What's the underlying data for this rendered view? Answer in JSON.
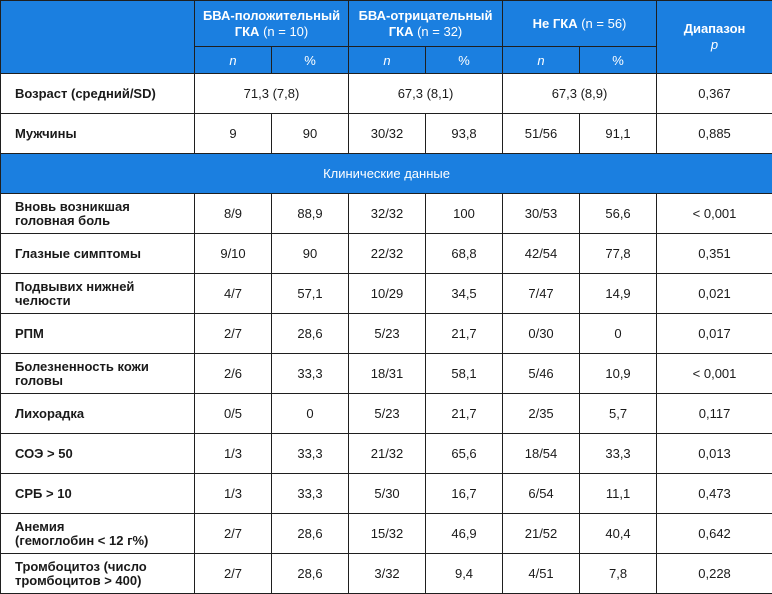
{
  "header": {
    "group1_title": "БВА-положительный",
    "group1_title2": "ГКА",
    "group1_n": "(n = 10)",
    "group2_title": "БВА-отрицательный",
    "group2_title2": "ГКА",
    "group2_n": "(n = 32)",
    "group3_title": "Не ГКА",
    "group3_n": "(n = 56)",
    "range_title": "Диапазон",
    "range_p": "p",
    "n_label": "n",
    "pct_label": "%"
  },
  "top_rows": {
    "age": {
      "label": "Возраст (средний/SD)",
      "g1": "71,3 (7,8)",
      "g2": "67,3 (8,1)",
      "g3": "67,3 (8,9)",
      "p": "0,367"
    },
    "men": {
      "label": "Мужчины",
      "g1n": "9",
      "g1p": "90",
      "g2n": "30/32",
      "g2p": "93,8",
      "g3n": "51/56",
      "g3p": "91,1",
      "p": "0,885"
    }
  },
  "clinical_title": "Клинические данные",
  "rows": [
    {
      "l1": "Вновь возникшая",
      "l2": "головная боль",
      "g1n": "8/9",
      "g1p": "88,9",
      "g2n": "32/32",
      "g2p": "100",
      "g3n": "30/53",
      "g3p": "56,6",
      "p": "< 0,001"
    },
    {
      "l1": "Глазные симптомы",
      "l2": "",
      "g1n": "9/10",
      "g1p": "90",
      "g2n": "22/32",
      "g2p": "68,8",
      "g3n": "42/54",
      "g3p": "77,8",
      "p": "0,351"
    },
    {
      "l1": "Подвывих нижней",
      "l2": "челюсти",
      "g1n": "4/7",
      "g1p": "57,1",
      "g2n": "10/29",
      "g2p": "34,5",
      "g3n": "7/47",
      "g3p": "14,9",
      "p": "0,021"
    },
    {
      "l1": "РПМ",
      "l2": "",
      "g1n": "2/7",
      "g1p": "28,6",
      "g2n": "5/23",
      "g2p": "21,7",
      "g3n": "0/30",
      "g3p": "0",
      "p": "0,017"
    },
    {
      "l1": "Болезненность кожи",
      "l2": "головы",
      "g1n": "2/6",
      "g1p": "33,3",
      "g2n": "18/31",
      "g2p": "58,1",
      "g3n": "5/46",
      "g3p": "10,9",
      "p": "< 0,001"
    },
    {
      "l1": "Лихорадка",
      "l2": "",
      "g1n": "0/5",
      "g1p": "0",
      "g2n": "5/23",
      "g2p": "21,7",
      "g3n": "2/35",
      "g3p": "5,7",
      "p": "0,117"
    },
    {
      "l1": "СОЭ > 50",
      "l2": "",
      "g1n": "1/3",
      "g1p": "33,3",
      "g2n": "21/32",
      "g2p": "65,6",
      "g3n": "18/54",
      "g3p": "33,3",
      "p": "0,013"
    },
    {
      "l1": "СРБ > 10",
      "l2": "",
      "g1n": "1/3",
      "g1p": "33,3",
      "g2n": "5/30",
      "g2p": "16,7",
      "g3n": "6/54",
      "g3p": "11,1",
      "p": "0,473"
    },
    {
      "l1": "Анемия",
      "l2": "(гемоглобин < 12 г%)",
      "g1n": "2/7",
      "g1p": "28,6",
      "g2n": "15/32",
      "g2p": "46,9",
      "g3n": "21/52",
      "g3p": "40,4",
      "p": "0,642"
    },
    {
      "l1": "Тромбоцитоз (число",
      "l2": "тромбоцитов > 400)",
      "g1n": "2/7",
      "g1p": "28,6",
      "g2n": "3/32",
      "g2p": "9,4",
      "g3n": "4/51",
      "g3p": "7,8",
      "p": "0,228"
    }
  ],
  "colors": {
    "header_bg": "#1b7fe0",
    "header_text": "#ffffff",
    "border": "#1f1f1f"
  }
}
